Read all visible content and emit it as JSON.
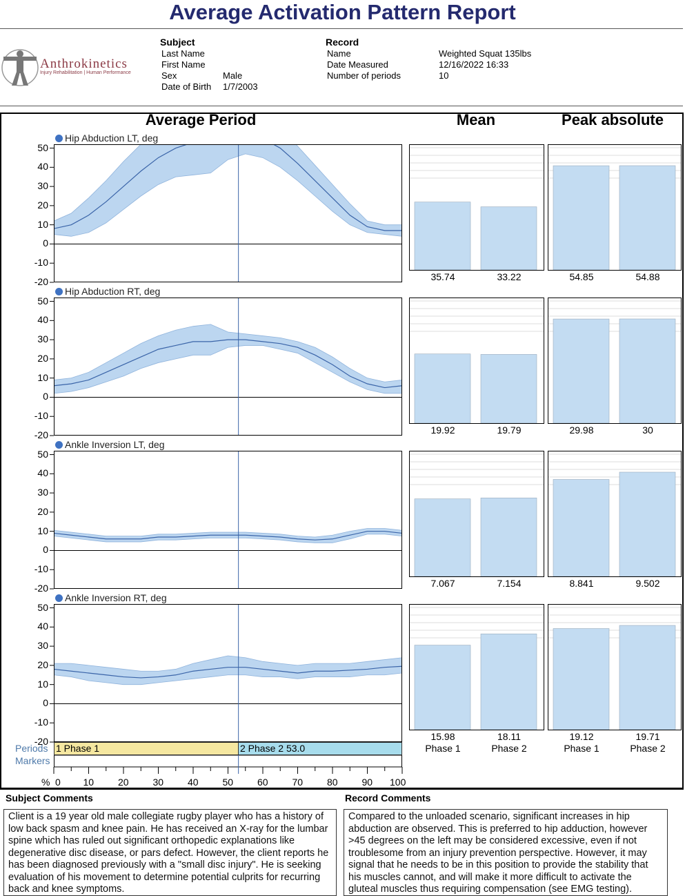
{
  "title": "Average Activation Pattern Report",
  "logo": {
    "name": "Anthrokinetics",
    "tagline": "Injury Rehabilitation | Human Performance"
  },
  "subject": {
    "heading": "Subject",
    "fields": [
      {
        "label": "Last Name",
        "value": ""
      },
      {
        "label": "First Name",
        "value": ""
      },
      {
        "label": "Sex",
        "value": "Male"
      },
      {
        "label": "Date of Birth",
        "value": "1/7/2003"
      }
    ]
  },
  "record": {
    "heading": "Record",
    "fields": [
      {
        "label": "Name",
        "value": "Weighted Squat 135lbs"
      },
      {
        "label": "Date Measured",
        "value": "12/16/2022 16:33"
      },
      {
        "label": "Number of periods",
        "value": "10"
      }
    ]
  },
  "columns": {
    "avg": "Average Period",
    "mean": "Mean",
    "peak": "Peak absolute"
  },
  "colors": {
    "line": "#3a64a8",
    "band": "#bcd6f0",
    "bar": "#c3dcf2",
    "phase1": "#f5e7a0",
    "phase2": "#a7dcec",
    "title": "#242a6e"
  },
  "chart_data": {
    "type": "line",
    "x_label": "%",
    "xlim": [
      0,
      100
    ],
    "x_ticks": [
      "0",
      "10",
      "20",
      "30",
      "40",
      "50",
      "60",
      "70",
      "80",
      "90",
      "100"
    ],
    "ylim": [
      -20,
      52
    ],
    "y_ticks": [
      "50",
      "40",
      "30",
      "20",
      "10",
      "0",
      "-10",
      "-20"
    ],
    "phase_marker_x": 53,
    "x": [
      0,
      5,
      10,
      15,
      20,
      25,
      30,
      35,
      40,
      45,
      50,
      55,
      60,
      65,
      70,
      75,
      80,
      85,
      90,
      95,
      100
    ],
    "series": [
      {
        "name": "Hip Abduction LT, deg",
        "mean": [
          8,
          10,
          15,
          22,
          30,
          38,
          45,
          50,
          53,
          55,
          57,
          57,
          55,
          50,
          42,
          33,
          24,
          15,
          9,
          7,
          7
        ],
        "upper": [
          12,
          16,
          24,
          33,
          43,
          52,
          58,
          62,
          64,
          66,
          68,
          67,
          65,
          60,
          51,
          41,
          31,
          21,
          12,
          10,
          10
        ],
        "lower": [
          5,
          4,
          6,
          11,
          18,
          25,
          31,
          35,
          36,
          37,
          44,
          47,
          45,
          40,
          33,
          25,
          17,
          10,
          6,
          5,
          4
        ],
        "mean_values": [
          "35.74",
          "33.22"
        ],
        "mean_nums": [
          35.74,
          33.22
        ],
        "peak_values": [
          "54.85",
          "54.88"
        ],
        "peak_nums": [
          54.85,
          54.88
        ]
      },
      {
        "name": "Hip Abduction RT, deg",
        "mean": [
          6,
          7,
          9,
          13,
          17,
          21,
          25,
          27,
          29,
          29,
          30,
          30,
          29,
          28,
          26,
          22,
          17,
          11,
          7,
          5,
          6
        ],
        "upper": [
          9,
          10,
          13,
          18,
          23,
          28,
          32,
          35,
          37,
          38,
          34,
          33,
          32,
          31,
          29,
          26,
          21,
          15,
          10,
          8,
          9
        ],
        "lower": [
          2,
          3,
          5,
          8,
          11,
          15,
          18,
          20,
          22,
          22,
          26,
          27,
          27,
          25,
          23,
          18,
          13,
          8,
          4,
          2,
          2
        ],
        "mean_values": [
          "19.92",
          "19.79"
        ],
        "mean_nums": [
          19.92,
          19.79
        ],
        "peak_values": [
          "29.98",
          "30"
        ],
        "peak_nums": [
          29.98,
          30
        ]
      },
      {
        "name": "Ankle Inversion LT, deg",
        "mean": [
          9,
          8,
          7,
          6,
          6,
          6,
          7,
          7,
          7.5,
          8,
          8,
          8,
          7.5,
          7,
          6,
          5.5,
          6,
          8,
          10,
          10,
          9
        ],
        "upper": [
          10.5,
          9.5,
          8.5,
          7.5,
          7.5,
          7.5,
          8.5,
          8.5,
          9,
          9.5,
          9.5,
          9.5,
          9,
          8.5,
          7.5,
          7,
          8,
          10,
          11.5,
          11.5,
          10.5
        ],
        "lower": [
          7.5,
          6.5,
          5.5,
          4.5,
          4.5,
          4.5,
          5.5,
          5.5,
          6,
          6.5,
          6.5,
          6.5,
          6,
          5.5,
          4.5,
          4,
          4,
          6,
          8.5,
          8.5,
          7.5
        ],
        "mean_values": [
          "7.067",
          "7.154"
        ],
        "mean_nums": [
          7.067,
          7.154
        ],
        "peak_values": [
          "8.841",
          "9.502"
        ],
        "peak_nums": [
          8.841,
          9.502
        ]
      },
      {
        "name": "Ankle Inversion RT, deg",
        "mean": [
          18,
          17,
          16,
          15,
          14,
          13.5,
          14,
          15,
          17,
          18,
          19,
          19,
          18,
          17,
          16,
          17,
          17,
          17.5,
          18,
          19,
          19.5
        ],
        "upper": [
          21,
          21,
          20,
          19,
          18,
          17,
          17,
          18,
          21,
          23,
          25,
          24,
          22,
          21,
          20,
          21,
          21,
          21,
          22,
          23,
          24
        ],
        "lower": [
          15,
          14,
          12,
          11,
          10,
          10,
          11,
          12,
          13,
          14,
          15,
          15,
          14,
          14,
          13,
          14,
          14,
          14,
          15,
          15,
          16
        ],
        "mean_values": [
          "15.98",
          "18.11"
        ],
        "mean_nums": [
          15.98,
          18.11
        ],
        "peak_values": [
          "19.12",
          "19.71"
        ],
        "peak_nums": [
          19.12,
          19.71
        ]
      }
    ],
    "bar_categories": [
      "Phase 1",
      "Phase 2"
    ]
  },
  "periods": {
    "label": "Periods",
    "markers_label": "Markers",
    "phase1": "1 Phase 1",
    "phase2": "2 Phase 2 53.0"
  },
  "subject_comments": {
    "heading": "Subject Comments",
    "text": "Client is a 19 year old male collegiate rugby player who has a history of low back spasm and knee pain. He has received an X-ray for the lumbar spine which has ruled out significant orthopedic explanations like degenerative disc disease, or pars defect. However, the client reports he has been diagnosed previously with a \"small disc injury\". He is seeking evaluation of his movement to determine potential culprits for recurring back and knee symptoms."
  },
  "record_comments": {
    "heading": "Record Comments",
    "text": "Compared to the unloaded scenario, significant increases in hip abduction are observed. This is preferred to hip adduction, however >45 degrees on the left may be considered excessive, even if not troublesome from an injury prevention perspective. However, it may signal that he needs to be in this position to provide the stability that his muscles cannot, and will make it more difficult to activate the gluteal muscles thus requiring compensation (see EMG testing)."
  }
}
